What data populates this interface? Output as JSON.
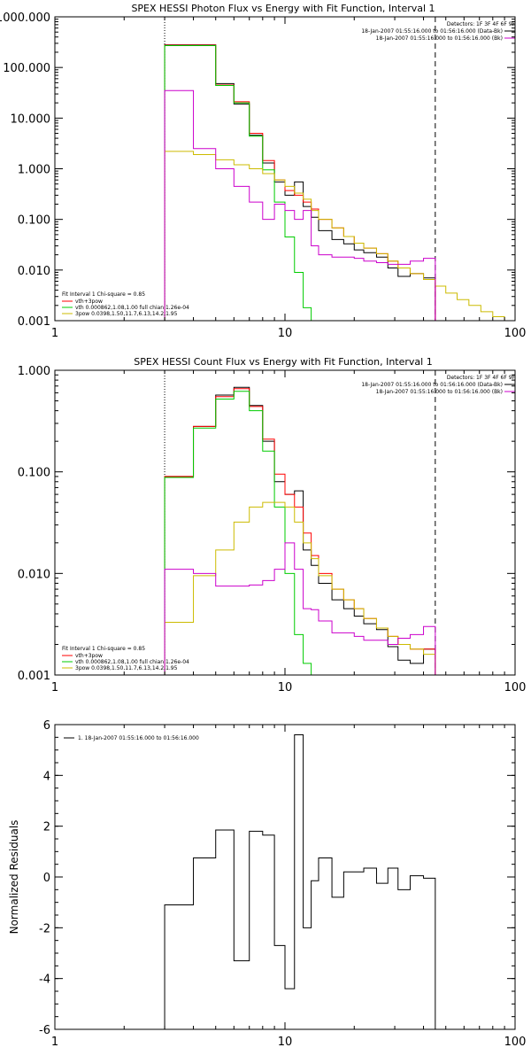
{
  "chart_data": [
    {
      "type": "line",
      "title": "SPEX HESSI Photon Flux vs Energy with Fit Function, Interval 1",
      "xlabel": "",
      "ylabel": "",
      "x_scale": "log",
      "y_scale": "log",
      "xlim": [
        1,
        100
      ],
      "ylim": [
        0.001,
        1000
      ],
      "x_ticks": [
        1,
        10,
        100
      ],
      "x_tick_labels": [
        "1",
        "10",
        "100"
      ],
      "y_ticks": [
        0.001,
        0.01,
        0.1,
        1,
        10,
        100,
        1000
      ],
      "y_tick_labels": [
        "0.001",
        "0.010",
        "0.100",
        "1.000",
        "10.000",
        "100.000",
        "1000.000"
      ],
      "vlines": [
        {
          "x": 3,
          "style": "dotted"
        },
        {
          "x": 45,
          "style": "dashed"
        }
      ],
      "legend_top": {
        "header": "Detectors: 1F 3F 4F 6F 9F",
        "entries": [
          {
            "label": "18-Jan-2007 01:55:16.000 to 01:56:16.000 (Data-Bk)",
            "color": "#000000"
          },
          {
            "label": "18-Jan-2007 01:55:16.000 to 01:56:16.000 (Bk)",
            "color": "#cc00cc"
          }
        ]
      },
      "legend_bottom": {
        "header": "Fit Interval 1    Chi-square = 0.85",
        "entries": [
          {
            "label": "vth+3pow",
            "color": "#ff0000"
          },
          {
            "label": "vth 0.000862,1.08,1.00   full chian 1.26e-04",
            "color": "#00cc00"
          },
          {
            "label": "3pow 0.0398,1.50,11.7,6.13,14.2,1.95",
            "color": "#ccbb00"
          }
        ]
      },
      "edges": [
        3,
        4,
        5,
        6,
        7,
        8,
        9,
        10,
        11,
        12,
        13,
        14,
        16,
        18,
        20,
        22,
        25,
        28,
        31,
        35,
        40,
        45,
        50,
        56,
        63,
        71,
        80,
        90,
        100
      ],
      "series": [
        {
          "name": "Data-Bk",
          "color": "#000000",
          "values": [
            280,
            280,
            48,
            19,
            4.6,
            1.3,
            0.55,
            0.3,
            0.55,
            0.18,
            0.11,
            0.06,
            0.04,
            0.033,
            0.025,
            0.022,
            0.018,
            0.011,
            0.0075,
            0.0085,
            0.007
          ]
        },
        {
          "name": "vth+3pow",
          "color": "#ff0000",
          "values": [
            275,
            275,
            45,
            21,
            5,
            1.45,
            0.6,
            0.37,
            0.3,
            0.22,
            0.16,
            0.1,
            0.068,
            0.046,
            0.034,
            0.027,
            0.021,
            0.015,
            0.011,
            0.0085,
            0.0065
          ]
        },
        {
          "name": "vth",
          "color": "#00cc00",
          "values": [
            270,
            270,
            44,
            20,
            4.4,
            0.95,
            0.22,
            0.045,
            0.009,
            0.0018,
            0.0008
          ]
        },
        {
          "name": "3pow",
          "color": "#ccbb00",
          "values": [
            2.2,
            1.9,
            1.5,
            1.2,
            1.0,
            0.8,
            0.6,
            0.45,
            0.33,
            0.25,
            0.15,
            0.1,
            0.068,
            0.046,
            0.034,
            0.027,
            0.021,
            0.015,
            0.011,
            0.0085,
            0.0065,
            0.0048,
            0.0035,
            0.0026,
            0.002,
            0.0015,
            0.0012,
            0.001
          ]
        },
        {
          "name": "Bk",
          "color": "#cc00cc",
          "values": [
            35,
            2.5,
            1.0,
            0.45,
            0.22,
            0.1,
            0.2,
            0.15,
            0.1,
            0.15,
            0.03,
            0.02,
            0.018,
            0.018,
            0.017,
            0.015,
            0.014,
            0.013,
            0.013,
            0.015,
            0.017
          ]
        }
      ]
    },
    {
      "type": "line",
      "title": "SPEX HESSI Count Flux vs Energy with Fit Function, Interval 1",
      "xlabel": "",
      "ylabel": "",
      "x_scale": "log",
      "y_scale": "log",
      "xlim": [
        1,
        100
      ],
      "ylim": [
        0.001,
        1
      ],
      "x_ticks": [
        1,
        10,
        100
      ],
      "x_tick_labels": [
        "1",
        "10",
        "100"
      ],
      "y_ticks": [
        0.001,
        0.01,
        0.1,
        1
      ],
      "y_tick_labels": [
        "0.001",
        "0.010",
        "0.100",
        "1.000"
      ],
      "vlines": [
        {
          "x": 3,
          "style": "dotted"
        },
        {
          "x": 45,
          "style": "dashed"
        }
      ],
      "legend_top": {
        "header": "Detectors: 1F 3F 4F 6F 9F",
        "entries": [
          {
            "label": "18-Jan-2007 01:55:16.000 to 01:56:16.000 (Data-Bk)",
            "color": "#000000"
          },
          {
            "label": "18-Jan-2007 01:55:16.000 to 01:56:16.000 (Bk)",
            "color": "#cc00cc"
          }
        ]
      },
      "legend_bottom": {
        "header": "Fit Interval 1    Chi-square = 0.85",
        "entries": [
          {
            "label": "vth+3pow",
            "color": "#ff0000"
          },
          {
            "label": "vth 0.000862,1.08,1.00   full chian 1.26e-04",
            "color": "#00cc00"
          },
          {
            "label": "3pow 0.0398,1.50,11.7,6.13,14.2,1.95",
            "color": "#ccbb00"
          }
        ]
      },
      "edges": [
        3,
        4,
        5,
        6,
        7,
        8,
        9,
        10,
        11,
        12,
        13,
        14,
        16,
        18,
        20,
        22,
        25,
        28,
        31,
        35,
        40,
        45,
        50
      ],
      "series": [
        {
          "name": "Data-Bk",
          "color": "#000000",
          "values": [
            0.09,
            0.28,
            0.57,
            0.68,
            0.45,
            0.2,
            0.08,
            0.06,
            0.065,
            0.017,
            0.012,
            0.008,
            0.0055,
            0.0045,
            0.0038,
            0.0032,
            0.0028,
            0.0019,
            0.0014,
            0.0013,
            0.0018
          ]
        },
        {
          "name": "vth+3pow",
          "color": "#ff0000",
          "values": [
            0.09,
            0.28,
            0.55,
            0.66,
            0.44,
            0.21,
            0.095,
            0.06,
            0.045,
            0.025,
            0.015,
            0.01,
            0.007,
            0.0055,
            0.0045,
            0.0036,
            0.0029,
            0.0024,
            0.002,
            0.0018,
            0.0018
          ]
        },
        {
          "name": "vth",
          "color": "#00cc00",
          "values": [
            0.088,
            0.27,
            0.52,
            0.62,
            0.4,
            0.16,
            0.045,
            0.01,
            0.0025,
            0.0013,
            0.0009
          ]
        },
        {
          "name": "3pow",
          "color": "#ccbb00",
          "values": [
            0.0033,
            0.0095,
            0.017,
            0.032,
            0.045,
            0.05,
            0.05,
            0.045,
            0.032,
            0.02,
            0.014,
            0.0095,
            0.007,
            0.0055,
            0.0045,
            0.0036,
            0.0029,
            0.0024,
            0.002,
            0.0018,
            0.0016,
            0.001
          ]
        },
        {
          "name": "Bk",
          "color": "#cc00cc",
          "values": [
            0.011,
            0.01,
            0.0075,
            0.0075,
            0.0077,
            0.0085,
            0.011,
            0.02,
            0.011,
            0.0045,
            0.0044,
            0.0034,
            0.0026,
            0.0026,
            0.0024,
            0.0022,
            0.0022,
            0.002,
            0.0023,
            0.0025,
            0.003
          ]
        }
      ]
    },
    {
      "type": "line",
      "title": "",
      "xlabel": "",
      "ylabel": "Normalized Residuals",
      "x_scale": "log",
      "y_scale": "linear",
      "xlim": [
        1,
        100
      ],
      "ylim": [
        -6,
        6
      ],
      "x_ticks": [
        1,
        10,
        100
      ],
      "x_tick_labels": [
        "1",
        "10",
        "100"
      ],
      "y_ticks": [
        -6,
        -4,
        -2,
        0,
        2,
        4,
        6
      ],
      "y_tick_labels": [
        "-6",
        "-4",
        "-2",
        "0",
        "2",
        "4",
        "6"
      ],
      "legend_top": {
        "header": "",
        "entries": [
          {
            "label": "1. 18-Jan-2007 01:55:16.000 to 01:56:16.000",
            "color": "#000000"
          }
        ]
      },
      "edges": [
        3,
        4,
        5,
        6,
        7,
        8,
        9,
        10,
        11,
        12,
        13,
        14,
        16,
        18,
        20,
        22,
        25,
        28,
        31,
        35,
        40,
        45
      ],
      "series": [
        {
          "name": "",
          "color": "#000000",
          "values": [
            -1.1,
            0.75,
            1.85,
            -3.3,
            1.8,
            1.65,
            -2.7,
            -4.4,
            5.6,
            -2.0,
            -0.15,
            0.75,
            -0.8,
            0.2,
            0.2,
            0.35,
            -0.25,
            0.35,
            -0.5,
            0.05,
            -0.05
          ]
        }
      ]
    }
  ]
}
